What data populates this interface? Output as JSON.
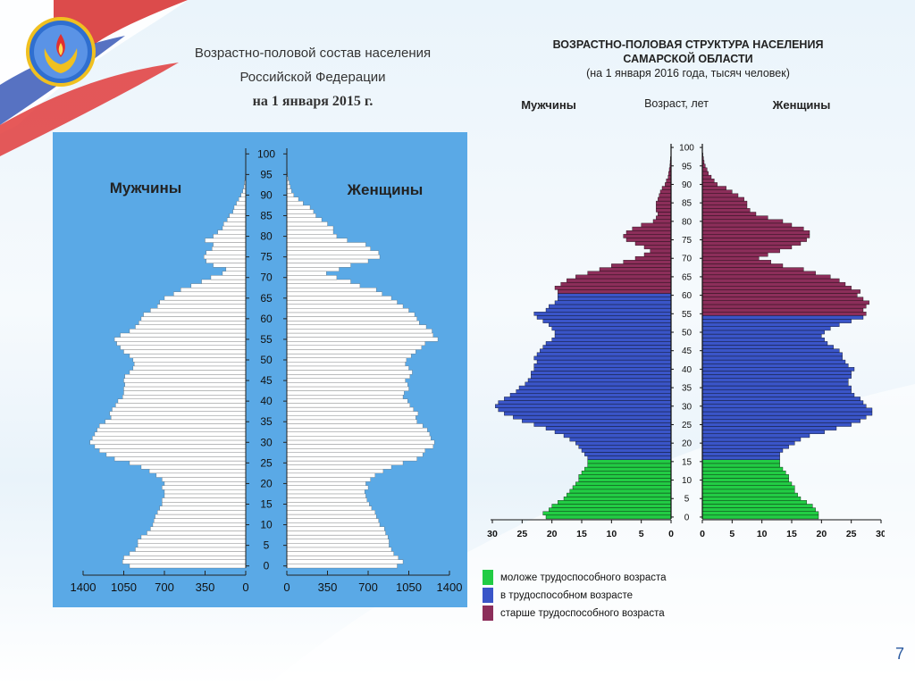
{
  "slide": {
    "left_title_line1": "Возрастно-половой состав населения",
    "left_title_line2": "Российской Федерации",
    "left_title_date": "на 1 января 2015 г.",
    "right_title_line1": "ВОЗРАСТНО-ПОЛОВАЯ СТРУКТУРА НАСЕЛЕНИЯ",
    "right_title_line2": "САМАРСКОЙ ОБЛАСТИ",
    "right_title_line3": "(на 1 января 2016 года, тысяч человек)",
    "page_number": "7"
  },
  "chart_data": [
    {
      "type": "bar",
      "orientation": "population-pyramid",
      "title": "Возрастно-половой состав населения Российской Федерации на 1 января 2015 г.",
      "left_label": "Мужчины",
      "right_label": "Женщины",
      "x_ticks_left": [
        "1400",
        "1050",
        "700",
        "350",
        "0"
      ],
      "x_ticks_right": [
        "0",
        "350",
        "700",
        "1050",
        "1400"
      ],
      "age_ticks": [
        "0",
        "5",
        "10",
        "15",
        "20",
        "25",
        "30",
        "35",
        "40",
        "45",
        "50",
        "55",
        "60",
        "65",
        "70",
        "75",
        "80",
        "85",
        "90",
        "95",
        "100"
      ],
      "xlim": [
        0,
        1400
      ],
      "ages": [
        0,
        1,
        2,
        3,
        4,
        5,
        6,
        7,
        8,
        9,
        10,
        11,
        12,
        13,
        14,
        15,
        16,
        17,
        18,
        19,
        20,
        21,
        22,
        23,
        24,
        25,
        26,
        27,
        28,
        29,
        30,
        31,
        32,
        33,
        34,
        35,
        36,
        37,
        38,
        39,
        40,
        41,
        42,
        43,
        44,
        45,
        46,
        47,
        48,
        49,
        50,
        51,
        52,
        53,
        54,
        55,
        56,
        57,
        58,
        59,
        60,
        61,
        62,
        63,
        64,
        65,
        66,
        67,
        68,
        69,
        70,
        71,
        72,
        73,
        74,
        75,
        76,
        77,
        78,
        79,
        80,
        81,
        82,
        83,
        84,
        85,
        86,
        87,
        88,
        89,
        90,
        91,
        92,
        93,
        94,
        95,
        96,
        97,
        98,
        99,
        100
      ],
      "colors": {
        "background": "#5aa9e6",
        "bars": "#ffffff",
        "border": "#555555"
      },
      "series": [
        {
          "name": "Мужчины",
          "values": [
            1000,
            1060,
            1050,
            1000,
            950,
            930,
            930,
            900,
            850,
            820,
            800,
            790,
            780,
            760,
            740,
            720,
            720,
            700,
            700,
            720,
            700,
            720,
            770,
            830,
            900,
            1000,
            1130,
            1200,
            1260,
            1300,
            1340,
            1320,
            1300,
            1280,
            1260,
            1210,
            1160,
            1170,
            1150,
            1120,
            1100,
            1060,
            1050,
            1050,
            1040,
            1050,
            1040,
            1000,
            970,
            960,
            970,
            1000,
            1050,
            1080,
            1110,
            1130,
            1080,
            1000,
            950,
            920,
            900,
            880,
            820,
            760,
            740,
            700,
            620,
            560,
            470,
            380,
            300,
            200,
            170,
            280,
            340,
            360,
            340,
            290,
            280,
            350,
            280,
            240,
            200,
            190,
            160,
            140,
            110,
            100,
            80,
            60,
            40,
            25,
            15,
            10,
            5,
            3,
            2,
            1,
            1,
            1,
            0
          ]
        },
        {
          "name": "Женщины",
          "values": [
            950,
            1000,
            960,
            920,
            900,
            880,
            880,
            870,
            850,
            840,
            800,
            790,
            770,
            760,
            730,
            710,
            690,
            680,
            670,
            700,
            680,
            720,
            760,
            830,
            900,
            1000,
            1120,
            1170,
            1190,
            1260,
            1270,
            1240,
            1230,
            1210,
            1170,
            1120,
            1110,
            1130,
            1090,
            1060,
            1040,
            1000,
            1010,
            1050,
            1040,
            1020,
            1060,
            1080,
            1050,
            1020,
            1030,
            1070,
            1110,
            1160,
            1190,
            1300,
            1260,
            1250,
            1200,
            1140,
            1120,
            1100,
            1050,
            1000,
            950,
            900,
            820,
            770,
            630,
            550,
            430,
            340,
            450,
            550,
            700,
            800,
            790,
            720,
            680,
            520,
            430,
            400,
            400,
            350,
            300,
            250,
            230,
            200,
            140,
            100,
            60,
            40,
            30,
            20,
            10,
            5,
            3,
            2,
            1,
            1,
            0
          ]
        }
      ]
    },
    {
      "type": "bar",
      "orientation": "population-pyramid",
      "title": "ВОЗРАСТНО-ПОЛОВАЯ СТРУКТУРА НАСЕЛЕНИЯ САМАРСКОЙ ОБЛАСТИ (на 1 января 2016 года, тысяч человек)",
      "left_label": "Мужчины",
      "center_label": "Возраст, лет",
      "right_label": "Женщины",
      "x_ticks_left": [
        "30",
        "25",
        "20",
        "15",
        "10",
        "5",
        "0"
      ],
      "x_ticks_right": [
        "0",
        "5",
        "10",
        "15",
        "20",
        "25",
        "30"
      ],
      "age_ticks": [
        "0",
        "5",
        "10",
        "15",
        "20",
        "25",
        "30",
        "35",
        "40",
        "45",
        "50",
        "55",
        "60",
        "65",
        "70",
        "75",
        "80",
        "85",
        "90",
        "95",
        "100"
      ],
      "xlim": [
        0,
        30
      ],
      "ages": [
        0,
        1,
        2,
        3,
        4,
        5,
        6,
        7,
        8,
        9,
        10,
        11,
        12,
        13,
        14,
        15,
        16,
        17,
        18,
        19,
        20,
        21,
        22,
        23,
        24,
        25,
        26,
        27,
        28,
        29,
        30,
        31,
        32,
        33,
        34,
        35,
        36,
        37,
        38,
        39,
        40,
        41,
        42,
        43,
        44,
        45,
        46,
        47,
        48,
        49,
        50,
        51,
        52,
        53,
        54,
        55,
        56,
        57,
        58,
        59,
        60,
        61,
        62,
        63,
        64,
        65,
        66,
        67,
        68,
        69,
        70,
        71,
        72,
        73,
        74,
        75,
        76,
        77,
        78,
        79,
        80,
        81,
        82,
        83,
        84,
        85,
        86,
        87,
        88,
        89,
        90,
        91,
        92,
        93,
        94,
        95,
        96,
        97,
        98,
        99,
        100
      ],
      "male_groups": [
        "young",
        "young",
        "young",
        "young",
        "young",
        "young",
        "young",
        "young",
        "young",
        "young",
        "young",
        "young",
        "young",
        "young",
        "young",
        "young",
        "working",
        "working",
        "working",
        "working",
        "working",
        "working",
        "working",
        "working",
        "working",
        "working",
        "working",
        "working",
        "working",
        "working",
        "working",
        "working",
        "working",
        "working",
        "working",
        "working",
        "working",
        "working",
        "working",
        "working",
        "working",
        "working",
        "working",
        "working",
        "working",
        "working",
        "working",
        "working",
        "working",
        "working",
        "working",
        "working",
        "working",
        "working",
        "working",
        "working",
        "working",
        "working",
        "working",
        "working",
        "working",
        "old",
        "old",
        "old",
        "old",
        "old",
        "old",
        "old",
        "old",
        "old",
        "old",
        "old",
        "old",
        "old",
        "old",
        "old",
        "old",
        "old",
        "old",
        "old",
        "old",
        "old",
        "old",
        "old",
        "old",
        "old",
        "old",
        "old",
        "old",
        "old",
        "old",
        "old",
        "old",
        "old",
        "old",
        "old",
        "old",
        "old",
        "old",
        "old",
        "old"
      ],
      "female_groups": [
        "young",
        "young",
        "young",
        "young",
        "young",
        "young",
        "young",
        "young",
        "young",
        "young",
        "young",
        "young",
        "young",
        "young",
        "young",
        "young",
        "working",
        "working",
        "working",
        "working",
        "working",
        "working",
        "working",
        "working",
        "working",
        "working",
        "working",
        "working",
        "working",
        "working",
        "working",
        "working",
        "working",
        "working",
        "working",
        "working",
        "working",
        "working",
        "working",
        "working",
        "working",
        "working",
        "working",
        "working",
        "working",
        "working",
        "working",
        "working",
        "working",
        "working",
        "working",
        "working",
        "working",
        "working",
        "working",
        "old",
        "old",
        "old",
        "old",
        "old",
        "old",
        "old",
        "old",
        "old",
        "old",
        "old",
        "old",
        "old",
        "old",
        "old",
        "old",
        "old",
        "old",
        "old",
        "old",
        "old",
        "old",
        "old",
        "old",
        "old",
        "old",
        "old",
        "old",
        "old",
        "old",
        "old",
        "old",
        "old",
        "old",
        "old",
        "old",
        "old",
        "old",
        "old",
        "old",
        "old",
        "old",
        "old",
        "old",
        "old",
        "old"
      ],
      "legend": [
        {
          "key": "young",
          "label": "моложе трудоспособного возраста",
          "color": "#22cc44"
        },
        {
          "key": "working",
          "label": "в трудоспособном возрасте",
          "color": "#3a55c8"
        },
        {
          "key": "old",
          "label": "старше трудоспособного возраста",
          "color": "#8c2e5a"
        }
      ],
      "series": [
        {
          "name": "Мужчины",
          "values": [
            21,
            21.5,
            20.5,
            20,
            19,
            18,
            17.5,
            17,
            16.5,
            16,
            15.5,
            15.5,
            15,
            14.5,
            14,
            14,
            14,
            14.5,
            15,
            15.5,
            16,
            17,
            18,
            19.5,
            21,
            23,
            25,
            26.5,
            28,
            29,
            29.5,
            29,
            28,
            27,
            26,
            25.5,
            24.5,
            24,
            23.5,
            23.5,
            23,
            23,
            22.5,
            23,
            22.5,
            22,
            21.5,
            21,
            20,
            19.5,
            19.5,
            20,
            20.5,
            21.5,
            22.5,
            23,
            21,
            20.5,
            19.5,
            19,
            19,
            19,
            19.5,
            18.5,
            17.5,
            16,
            14,
            12,
            10,
            8,
            6,
            4.5,
            3.5,
            4.5,
            6,
            7.5,
            8,
            7.5,
            6.5,
            5,
            3,
            2.5,
            2.2,
            2.5,
            2.5,
            2.5,
            2.2,
            2,
            1.8,
            1.5,
            1,
            0.8,
            0.5,
            0.4,
            0.3,
            0.2,
            0.15,
            0.1,
            0.05,
            0.05,
            0.02
          ]
        },
        {
          "name": "Женщины",
          "values": [
            19.5,
            19.5,
            19,
            18.5,
            17.5,
            16.5,
            16,
            15.5,
            15.5,
            15,
            14.5,
            14.5,
            14,
            13.5,
            13,
            13,
            13,
            13,
            13.5,
            14.5,
            15.5,
            16.5,
            18,
            20.5,
            22.5,
            25,
            26.5,
            27.5,
            28.5,
            28.5,
            27.5,
            27,
            26.5,
            25.5,
            25,
            25,
            24.5,
            24.5,
            25,
            25,
            25.5,
            24.5,
            24,
            23.5,
            23.5,
            23,
            22,
            21,
            20.5,
            20,
            20.5,
            21.5,
            23,
            25,
            27,
            27.5,
            27,
            27.5,
            28,
            27,
            26,
            26.5,
            25,
            24,
            23,
            21.5,
            19,
            17,
            13.5,
            11.5,
            9.5,
            11,
            13,
            15,
            16.5,
            17.5,
            18,
            18,
            17,
            15,
            13.5,
            11,
            9,
            8,
            7.5,
            7.5,
            7,
            6,
            5,
            4,
            2.5,
            2,
            1.5,
            1,
            0.8,
            0.5,
            0.3,
            0.2,
            0.1,
            0.05,
            0.02
          ]
        }
      ]
    }
  ]
}
